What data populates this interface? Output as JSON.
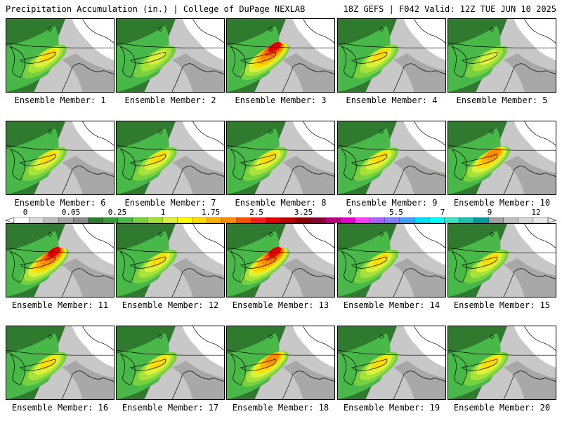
{
  "header": {
    "title_left": "Precipitation Accumulation (in.) | College of DuPage NEXLAB",
    "title_right": "18Z GEFS | F042 Valid: 12Z TUE JUN 10 2025"
  },
  "panels": [
    {
      "label": "Ensemble Member: 1",
      "max_level": 6
    },
    {
      "label": "Ensemble Member: 2",
      "max_level": 5
    },
    {
      "label": "Ensemble Member: 3",
      "max_level": 10
    },
    {
      "label": "Ensemble Member: 4",
      "max_level": 6
    },
    {
      "label": "Ensemble Member: 5",
      "max_level": 5
    },
    {
      "label": "Ensemble Member: 6",
      "max_level": 6
    },
    {
      "label": "Ensemble Member: 7",
      "max_level": 6
    },
    {
      "label": "Ensemble Member: 8",
      "max_level": 6
    },
    {
      "label": "Ensemble Member: 9",
      "max_level": 6
    },
    {
      "label": "Ensemble Member: 10",
      "max_level": 8
    },
    {
      "label": "Ensemble Member: 11",
      "max_level": 10
    },
    {
      "label": "Ensemble Member: 12",
      "max_level": 6
    },
    {
      "label": "Ensemble Member: 13",
      "max_level": 10
    },
    {
      "label": "Ensemble Member: 14",
      "max_level": 6
    },
    {
      "label": "Ensemble Member: 15",
      "max_level": 6
    },
    {
      "label": "Ensemble Member: 16",
      "max_level": 6
    },
    {
      "label": "Ensemble Member: 17",
      "max_level": 6
    },
    {
      "label": "Ensemble Member: 18",
      "max_level": 8
    },
    {
      "label": "Ensemble Member: 19",
      "max_level": 6
    },
    {
      "label": "Ensemble Member: 20",
      "max_level": 6
    }
  ],
  "colorbar": {
    "labels": [
      "0",
      "0.05",
      "0.25",
      "1",
      "1.75",
      "2.5",
      "3.25",
      "4",
      "5.5",
      "7",
      "9",
      "12"
    ],
    "colors": [
      "#ffffff",
      "#d9d9d9",
      "#bdbdbd",
      "#a3a3a3",
      "#8a8a8a",
      "#2f7a2f",
      "#3a9a3a",
      "#48b848",
      "#77d13f",
      "#a7e23a",
      "#dcf23a",
      "#ffff00",
      "#ffdd00",
      "#ffb000",
      "#ff8c00",
      "#ff5000",
      "#ff1e1e",
      "#e00000",
      "#b80000",
      "#8a0000",
      "#8a0030",
      "#b0007a",
      "#e000c8",
      "#ff40ff",
      "#b060ff",
      "#8080ff",
      "#40a0ff",
      "#00e0ff",
      "#00ffff",
      "#40e0c0",
      "#20c0b0",
      "#009a9a",
      "#a0a0a0",
      "#c0c0c0",
      "#d8d8d8",
      "#e8e8e8"
    ]
  }
}
